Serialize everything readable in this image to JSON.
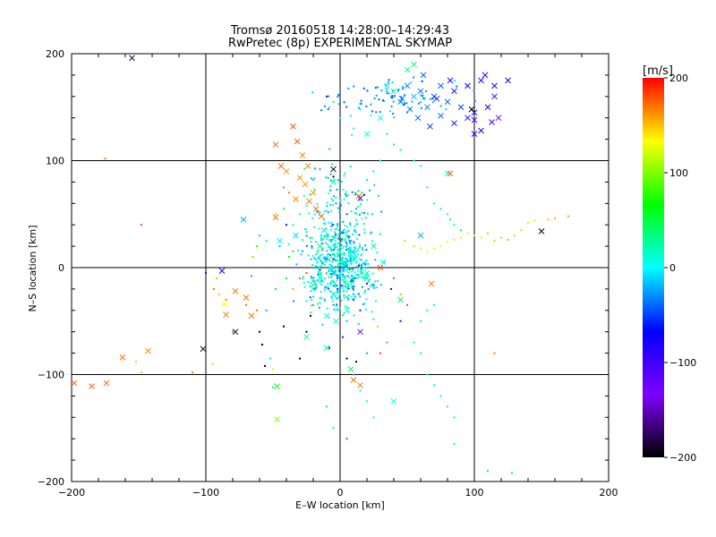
{
  "chart_data": {
    "type": "scatter",
    "title": "Tromsø 20160518 14:28:00–14:29:43",
    "subtitle": "RwPretec (8p) EXPERIMENTAL SKYMAP",
    "xlabel": "E–W location [km]",
    "ylabel": "N–S location [km]",
    "xlim": [
      -200,
      200
    ],
    "ylim": [
      -200,
      200
    ],
    "xticks": [
      "−200",
      "−100",
      "0",
      "100",
      "200"
    ],
    "yticks": [
      "−200",
      "−100",
      "0",
      "100",
      "200"
    ],
    "grid": true,
    "colorbar": {
      "unit": "[m/s]",
      "range": [
        -200,
        200
      ],
      "ticks": [
        "200",
        "100",
        "0",
        "−100",
        "−200"
      ],
      "colors": [
        "#000000",
        "#7f00ff",
        "#0000ff",
        "#00ffff",
        "#00ff00",
        "#ffff00",
        "#ff0000"
      ]
    },
    "crosses": [
      [
        -155,
        196,
        -180
      ],
      [
        -35,
        132,
        180
      ],
      [
        -32,
        118,
        175
      ],
      [
        -48,
        115,
        175
      ],
      [
        -28,
        105,
        165
      ],
      [
        -24,
        95,
        165
      ],
      [
        -44,
        95,
        170
      ],
      [
        -40,
        90,
        165
      ],
      [
        -30,
        84,
        160
      ],
      [
        -26,
        78,
        160
      ],
      [
        -20,
        70,
        160
      ],
      [
        -33,
        64,
        165
      ],
      [
        -23,
        62,
        165
      ],
      [
        -18,
        55,
        170
      ],
      [
        -14,
        48,
        170
      ],
      [
        -48,
        47,
        170
      ],
      [
        -72,
        45,
        -20
      ],
      [
        -45,
        25,
        0
      ],
      [
        -33,
        30,
        -10
      ],
      [
        -15,
        20,
        40
      ],
      [
        -88,
        -3,
        -80
      ],
      [
        -78,
        -22,
        170
      ],
      [
        -70,
        -28,
        170
      ],
      [
        -86,
        -34,
        130
      ],
      [
        -85,
        -44,
        170
      ],
      [
        -66,
        -45,
        170
      ],
      [
        -78,
        -60,
        -200
      ],
      [
        -102,
        -76,
        -200
      ],
      [
        -143,
        -78,
        165
      ],
      [
        -162,
        -84,
        170
      ],
      [
        -174,
        -108,
        175
      ],
      [
        -185,
        -111,
        175
      ],
      [
        -198,
        -108,
        175
      ],
      [
        -47,
        -111,
        60
      ],
      [
        -47,
        -142,
        100
      ],
      [
        -10,
        -75,
        30
      ],
      [
        -25,
        -65,
        30
      ],
      [
        15,
        -60,
        -120
      ],
      [
        8,
        -95,
        40
      ],
      [
        10,
        -105,
        170
      ],
      [
        15,
        -110,
        170
      ],
      [
        40,
        -125,
        0
      ],
      [
        -10,
        -45,
        10
      ],
      [
        5,
        -15,
        20
      ],
      [
        20,
        -5,
        20
      ],
      [
        30,
        0,
        180
      ],
      [
        32,
        5,
        0
      ],
      [
        60,
        30,
        -20
      ],
      [
        68,
        -15,
        170
      ],
      [
        45,
        -30,
        40
      ],
      [
        -5,
        80,
        20
      ],
      [
        -5,
        92,
        -200
      ],
      [
        15,
        65,
        -80
      ],
      [
        80,
        88,
        0
      ],
      [
        82,
        88,
        175
      ],
      [
        14,
        67,
        175
      ],
      [
        20,
        125,
        0
      ],
      [
        30,
        140,
        10
      ],
      [
        40,
        165,
        20
      ],
      [
        50,
        185,
        30
      ],
      [
        55,
        190,
        40
      ],
      [
        35,
        170,
        10
      ],
      [
        50,
        170,
        -30
      ],
      [
        60,
        165,
        -40
      ],
      [
        70,
        160,
        -50
      ],
      [
        80,
        155,
        -40
      ],
      [
        90,
        150,
        -50
      ],
      [
        100,
        145,
        -60
      ],
      [
        110,
        150,
        -70
      ],
      [
        75,
        170,
        -40
      ],
      [
        65,
        150,
        -30
      ],
      [
        55,
        160,
        -20
      ],
      [
        45,
        155,
        -30
      ],
      [
        85,
        165,
        -60
      ],
      [
        95,
        170,
        -70
      ],
      [
        105,
        175,
        -90
      ],
      [
        108,
        180,
        -90
      ],
      [
        115,
        170,
        -80
      ],
      [
        115,
        160,
        -100
      ],
      [
        118,
        140,
        -120
      ],
      [
        113,
        136,
        -100
      ],
      [
        125,
        175,
        -80
      ],
      [
        105,
        128,
        -90
      ],
      [
        100,
        138,
        -110
      ],
      [
        95,
        140,
        -80
      ],
      [
        82,
        175,
        -90
      ],
      [
        58,
        140,
        -40
      ],
      [
        67,
        132,
        -50
      ],
      [
        75,
        142,
        -40
      ],
      [
        85,
        135,
        -60
      ],
      [
        72,
        158,
        -60
      ],
      [
        62,
        180,
        -40
      ],
      [
        98,
        148,
        -210
      ],
      [
        46,
        158,
        -40
      ],
      [
        52,
        148,
        -30
      ],
      [
        100,
        125,
        -90
      ],
      [
        150,
        34,
        -200
      ],
      [
        20,
        -10,
        20
      ],
      [
        -15,
        -10,
        10
      ],
      [
        0,
        5,
        30
      ],
      [
        -5,
        -25,
        10
      ],
      [
        10,
        10,
        0
      ],
      [
        -20,
        -20,
        20
      ],
      [
        25,
        20,
        20
      ],
      [
        -12,
        35,
        -10
      ],
      [
        5,
        -40,
        10
      ],
      [
        -3,
        -50,
        10
      ]
    ],
    "points": [
      [
        -175,
        102,
        170
      ],
      [
        -148,
        40,
        180
      ],
      [
        -152,
        -88,
        150
      ],
      [
        -148,
        -98,
        100
      ],
      [
        -110,
        -98,
        170
      ],
      [
        -95,
        -90,
        150
      ],
      [
        -50,
        -112,
        40
      ],
      [
        -52,
        -85,
        30
      ],
      [
        -60,
        -60,
        -200
      ],
      [
        -58,
        -72,
        -200
      ],
      [
        -56,
        -92,
        -200
      ],
      [
        -42,
        -55,
        -200
      ],
      [
        -62,
        -40,
        170
      ],
      [
        -70,
        -35,
        170
      ],
      [
        -85,
        -30,
        170
      ],
      [
        -90,
        -25,
        150
      ],
      [
        -94,
        -20,
        170
      ],
      [
        -100,
        -5,
        -60
      ],
      [
        -62,
        20,
        80
      ],
      [
        -65,
        10,
        90
      ],
      [
        -60,
        30,
        60
      ],
      [
        -66,
        -8,
        -20
      ],
      [
        -92,
        -10,
        100
      ],
      [
        -10,
        160,
        -60
      ],
      [
        -5,
        155,
        20
      ],
      [
        0,
        140,
        0
      ],
      [
        8,
        142,
        10
      ],
      [
        -8,
        150,
        20
      ],
      [
        15,
        148,
        30
      ],
      [
        10,
        130,
        20
      ],
      [
        35,
        125,
        40
      ],
      [
        40,
        115,
        20
      ],
      [
        45,
        110,
        30
      ],
      [
        55,
        100,
        20
      ],
      [
        60,
        95,
        10
      ],
      [
        30,
        100,
        20
      ],
      [
        25,
        90,
        20
      ],
      [
        20,
        82,
        30
      ],
      [
        65,
        75,
        20
      ],
      [
        70,
        60,
        20
      ],
      [
        75,
        55,
        20
      ],
      [
        80,
        50,
        10
      ],
      [
        82,
        45,
        20
      ],
      [
        85,
        40,
        20
      ],
      [
        90,
        35,
        30
      ],
      [
        48,
        25,
        110
      ],
      [
        55,
        20,
        110
      ],
      [
        60,
        18,
        120
      ],
      [
        65,
        15,
        130
      ],
      [
        70,
        18,
        125
      ],
      [
        75,
        20,
        130
      ],
      [
        80,
        24,
        130
      ],
      [
        85,
        26,
        140
      ],
      [
        90,
        28,
        140
      ],
      [
        95,
        32,
        140
      ],
      [
        100,
        30,
        140
      ],
      [
        105,
        28,
        140
      ],
      [
        110,
        32,
        150
      ],
      [
        115,
        25,
        150
      ],
      [
        120,
        28,
        150
      ],
      [
        125,
        26,
        155
      ],
      [
        130,
        30,
        150
      ],
      [
        135,
        35,
        150
      ],
      [
        140,
        42,
        140
      ],
      [
        145,
        44,
        140
      ],
      [
        155,
        45,
        150
      ],
      [
        160,
        46,
        155
      ],
      [
        170,
        48,
        160
      ],
      [
        115,
        -80,
        170
      ],
      [
        128,
        -192,
        40
      ],
      [
        110,
        -190,
        40
      ],
      [
        85,
        -165,
        20
      ],
      [
        85,
        -140,
        20
      ],
      [
        80,
        -130,
        20
      ],
      [
        75,
        -120,
        10
      ],
      [
        70,
        -110,
        10
      ],
      [
        65,
        -100,
        10
      ],
      [
        60,
        -80,
        10
      ],
      [
        55,
        -70,
        10
      ],
      [
        60,
        -50,
        20
      ],
      [
        65,
        -40,
        20
      ],
      [
        70,
        -35,
        20
      ],
      [
        25,
        -140,
        0
      ],
      [
        20,
        -125,
        0
      ],
      [
        15,
        -115,
        0
      ],
      [
        10,
        -100,
        -20
      ],
      [
        5,
        -160,
        -30
      ],
      [
        -5,
        -150,
        -10
      ],
      [
        -10,
        -130,
        -10
      ],
      [
        5,
        -85,
        -200
      ],
      [
        12,
        -88,
        -200
      ],
      [
        20,
        -80,
        -20
      ],
      [
        -30,
        -85,
        -200
      ],
      [
        -25,
        -60,
        -200
      ],
      [
        -22,
        -45,
        -200
      ],
      [
        -55,
        -40,
        -20
      ],
      [
        -48,
        -20,
        60
      ],
      [
        -40,
        -10,
        60
      ],
      [
        -38,
        10,
        60
      ],
      [
        -35,
        15,
        70
      ],
      [
        -45,
        20,
        -20
      ],
      [
        -55,
        25,
        20
      ],
      [
        -35,
        40,
        20
      ],
      [
        -30,
        50,
        20
      ],
      [
        -25,
        58,
        30
      ],
      [
        -42,
        55,
        40
      ],
      [
        -48,
        50,
        150
      ],
      [
        -38,
        70,
        170
      ],
      [
        -42,
        75,
        170
      ],
      [
        -20,
        82,
        -10
      ],
      [
        -15,
        92,
        -20
      ],
      [
        -5,
        85,
        -200
      ],
      [
        -3,
        60,
        -30
      ],
      [
        0,
        45,
        -10
      ],
      [
        5,
        50,
        -20
      ],
      [
        12,
        55,
        -20
      ],
      [
        18,
        68,
        -80
      ],
      [
        22,
        72,
        -20
      ],
      [
        -25,
        -5,
        180
      ],
      [
        -30,
        -10,
        170
      ],
      [
        -35,
        -20,
        160
      ],
      [
        -20,
        -35,
        170
      ],
      [
        40,
        -10,
        180
      ],
      [
        45,
        -25,
        160
      ],
      [
        50,
        -35,
        180
      ],
      [
        35,
        -70,
        170
      ],
      [
        30,
        -80,
        180
      ],
      [
        -5,
        -5,
        -80
      ],
      [
        -2,
        -20,
        -90
      ],
      [
        10,
        -30,
        -70
      ],
      [
        15,
        -40,
        -100
      ],
      [
        20,
        -15,
        -60
      ],
      [
        8,
        8,
        -100
      ],
      [
        14,
        2,
        -80
      ],
      [
        -10,
        8,
        -50
      ],
      [
        -15,
        -2,
        -70
      ],
      [
        2,
        -65,
        -120
      ],
      [
        -8,
        -75,
        -80
      ],
      [
        38,
        -20,
        -90
      ],
      [
        45,
        -50,
        -70
      ],
      [
        -40,
        40,
        -90
      ],
      [
        28,
        -55,
        150
      ],
      [
        -50,
        -95,
        140
      ],
      [
        -80,
        -60,
        170
      ],
      [
        5,
        -50,
        -20
      ]
    ]
  },
  "color_stops": [
    "#000000",
    "#7f00ff",
    "#0000ff",
    "#00ffff",
    "#00ff00",
    "#ffff00",
    "#ff0000"
  ]
}
